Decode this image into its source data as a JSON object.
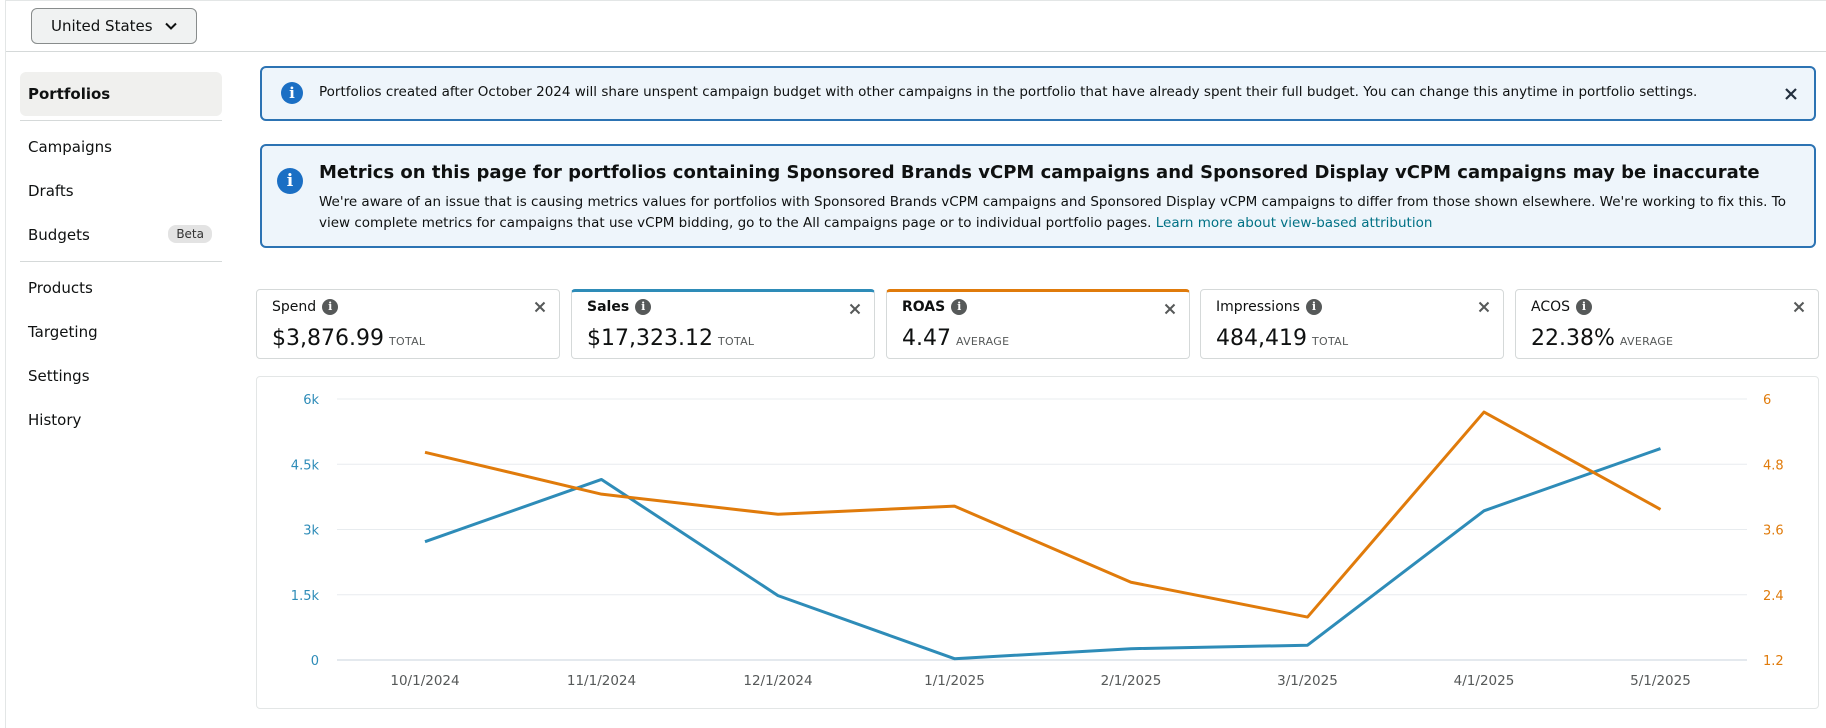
{
  "header": {
    "country": "United States"
  },
  "sidebar": {
    "items": [
      {
        "label": "Portfolios"
      },
      {
        "label": "Campaigns"
      },
      {
        "label": "Drafts"
      },
      {
        "label": "Budgets",
        "badge": "Beta"
      },
      {
        "label": "Products"
      },
      {
        "label": "Targeting"
      },
      {
        "label": "Settings"
      },
      {
        "label": "History"
      }
    ]
  },
  "alerts": {
    "portfolio_budget": "Portfolios created after October 2024 will share unspent campaign budget with other campaigns in the portfolio that have already spent their full budget. You can change this anytime in portfolio settings.",
    "metrics_title": "Metrics on this page for portfolios containing Sponsored Brands vCPM campaigns and Sponsored Display vCPM campaigns may be inaccurate",
    "metrics_body": "We're aware of an issue that is causing metrics values for portfolios with Sponsored Brands vCPM campaigns and Sponsored Display vCPM campaigns to differ from those shown elsewhere. We're working to fix this. To view complete metrics for campaigns that use vCPM bidding, go to the All campaigns page or to individual portfolio pages.",
    "metrics_link": "Learn more about view-based attribution"
  },
  "metrics": [
    {
      "name": "Spend",
      "value": "$3,876.99",
      "sub": "TOTAL"
    },
    {
      "name": "Sales",
      "value": "$17,323.12",
      "sub": "TOTAL"
    },
    {
      "name": "ROAS",
      "value": "4.47",
      "sub": "AVERAGE"
    },
    {
      "name": "Impressions",
      "value": "484,419",
      "sub": "TOTAL"
    },
    {
      "name": "ACOS",
      "value": "22.38%",
      "sub": "AVERAGE"
    }
  ],
  "colors": {
    "sales": "#2e8cb8",
    "roas": "#e07b0b",
    "accent_blue": "#2c73b3"
  },
  "chart_data": {
    "type": "line",
    "categories": [
      "10/1/2024",
      "11/1/2024",
      "12/1/2024",
      "1/1/2025",
      "2/1/2025",
      "3/1/2025",
      "4/1/2025",
      "5/1/2025"
    ],
    "y_left": {
      "ticks": [
        "0",
        "1.5k",
        "3k",
        "4.5k",
        "6k"
      ],
      "range": [
        0,
        6000
      ]
    },
    "y_right": {
      "ticks": [
        "1.2",
        "2.4",
        "3.6",
        "4.8",
        "6"
      ],
      "range": [
        1.2,
        6
      ]
    },
    "series": [
      {
        "name": "Sales",
        "axis": "left",
        "values": [
          2720,
          4150,
          1480,
          30,
          260,
          340,
          3430,
          4860
        ]
      },
      {
        "name": "ROAS",
        "axis": "right",
        "values": [
          5.02,
          4.25,
          3.88,
          4.03,
          2.63,
          1.99,
          5.76,
          3.97
        ]
      }
    ]
  }
}
